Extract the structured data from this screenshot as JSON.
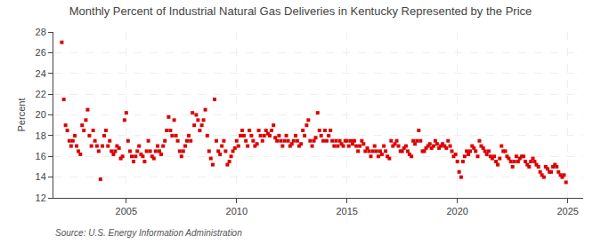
{
  "chart_data": {
    "type": "scatter",
    "title": "Monthly Percent of Industrial Natural Gas Deliveries in Kentucky Represented by the Price",
    "ylabel": "Percent",
    "annotations": [
      "Source: U.S. Energy Information Administration"
    ],
    "color": "#dd0000",
    "marker": "square",
    "grid": true,
    "xlim": [
      2001.7,
      2025.7
    ],
    "xticks": [
      2005,
      2010,
      2015,
      2020,
      2025
    ],
    "ylim": [
      12,
      28
    ],
    "yticks": [
      12,
      14,
      16,
      18,
      20,
      22,
      24,
      26,
      28
    ],
    "x": [
      2002.08,
      2002.17,
      2002.25,
      2002.33,
      2002.42,
      2002.5,
      2002.58,
      2002.67,
      2002.75,
      2002.83,
      2002.92,
      2003.0,
      2003.08,
      2003.17,
      2003.25,
      2003.33,
      2003.42,
      2003.5,
      2003.58,
      2003.67,
      2003.75,
      2003.83,
      2003.92,
      2004.0,
      2004.08,
      2004.17,
      2004.25,
      2004.33,
      2004.42,
      2004.5,
      2004.58,
      2004.67,
      2004.75,
      2004.83,
      2004.92,
      2005.0,
      2005.08,
      2005.17,
      2005.25,
      2005.33,
      2005.42,
      2005.5,
      2005.58,
      2005.67,
      2005.75,
      2005.83,
      2005.92,
      2006.0,
      2006.08,
      2006.17,
      2006.25,
      2006.33,
      2006.42,
      2006.5,
      2006.58,
      2006.67,
      2006.75,
      2006.83,
      2006.92,
      2007.0,
      2007.08,
      2007.17,
      2007.25,
      2007.33,
      2007.42,
      2007.5,
      2007.58,
      2007.67,
      2007.75,
      2007.83,
      2007.92,
      2008.0,
      2008.08,
      2008.17,
      2008.25,
      2008.33,
      2008.42,
      2008.5,
      2008.58,
      2008.67,
      2008.75,
      2008.83,
      2008.92,
      2009.0,
      2009.08,
      2009.17,
      2009.25,
      2009.33,
      2009.42,
      2009.5,
      2009.58,
      2009.67,
      2009.75,
      2009.83,
      2009.92,
      2010.0,
      2010.08,
      2010.17,
      2010.25,
      2010.33,
      2010.42,
      2010.5,
      2010.58,
      2010.67,
      2010.75,
      2010.83,
      2010.92,
      2011.0,
      2011.08,
      2011.17,
      2011.25,
      2011.33,
      2011.42,
      2011.5,
      2011.58,
      2011.67,
      2011.75,
      2011.83,
      2011.92,
      2012.0,
      2012.08,
      2012.17,
      2012.25,
      2012.33,
      2012.42,
      2012.5,
      2012.58,
      2012.67,
      2012.75,
      2012.83,
      2012.92,
      2013.0,
      2013.08,
      2013.17,
      2013.25,
      2013.33,
      2013.42,
      2013.5,
      2013.58,
      2013.67,
      2013.75,
      2013.83,
      2013.92,
      2014.0,
      2014.08,
      2014.17,
      2014.25,
      2014.33,
      2014.42,
      2014.5,
      2014.58,
      2014.67,
      2014.75,
      2014.83,
      2014.92,
      2015.0,
      2015.08,
      2015.17,
      2015.25,
      2015.33,
      2015.42,
      2015.5,
      2015.58,
      2015.67,
      2015.75,
      2015.83,
      2015.92,
      2016.0,
      2016.08,
      2016.17,
      2016.25,
      2016.33,
      2016.42,
      2016.5,
      2016.58,
      2016.67,
      2016.75,
      2016.83,
      2016.92,
      2017.0,
      2017.08,
      2017.17,
      2017.25,
      2017.33,
      2017.42,
      2017.5,
      2017.58,
      2017.67,
      2017.75,
      2017.83,
      2017.92,
      2018.0,
      2018.08,
      2018.17,
      2018.25,
      2018.33,
      2018.42,
      2018.5,
      2018.58,
      2018.67,
      2018.75,
      2018.83,
      2018.92,
      2019.0,
      2019.08,
      2019.17,
      2019.25,
      2019.33,
      2019.42,
      2019.5,
      2019.58,
      2019.67,
      2019.75,
      2019.83,
      2019.92,
      2020.0,
      2020.08,
      2020.17,
      2020.25,
      2020.33,
      2020.42,
      2020.5,
      2020.58,
      2020.67,
      2020.75,
      2020.83,
      2020.92,
      2021.0,
      2021.08,
      2021.17,
      2021.25,
      2021.33,
      2021.42,
      2021.5,
      2021.58,
      2021.67,
      2021.75,
      2021.83,
      2021.92,
      2022.0,
      2022.08,
      2022.17,
      2022.25,
      2022.33,
      2022.42,
      2022.5,
      2022.58,
      2022.67,
      2022.75,
      2022.83,
      2022.92,
      2023.0,
      2023.08,
      2023.17,
      2023.25,
      2023.33,
      2023.42,
      2023.5,
      2023.58,
      2023.67,
      2023.75,
      2023.83,
      2023.92,
      2024.0,
      2024.08,
      2024.17,
      2024.25,
      2024.33,
      2024.42,
      2024.5,
      2024.58,
      2024.67,
      2024.75,
      2024.83,
      2024.92
    ],
    "values": [
      27.0,
      21.5,
      19.0,
      18.5,
      17.5,
      17.0,
      17.5,
      18.0,
      17.0,
      16.5,
      16.2,
      19.0,
      18.5,
      19.5,
      20.5,
      18.0,
      17.0,
      18.5,
      17.5,
      17.0,
      16.5,
      13.8,
      17.0,
      18.0,
      18.5,
      17.0,
      17.5,
      16.5,
      16.2,
      16.5,
      17.0,
      16.8,
      15.8,
      16.0,
      19.5,
      20.2,
      17.5,
      16.5,
      16.0,
      15.5,
      16.0,
      16.5,
      17.0,
      16.2,
      16.0,
      15.5,
      16.5,
      17.5,
      16.5,
      16.0,
      15.8,
      16.5,
      17.0,
      16.5,
      16.2,
      17.0,
      17.5,
      18.5,
      19.8,
      18.5,
      18.0,
      19.5,
      18.0,
      17.5,
      16.5,
      16.0,
      16.5,
      17.0,
      17.5,
      18.0,
      17.5,
      20.2,
      19.0,
      20.0,
      19.5,
      18.5,
      19.0,
      19.5,
      20.5,
      18.0,
      16.5,
      15.8,
      15.2,
      21.5,
      17.5,
      16.5,
      16.2,
      17.0,
      17.5,
      16.5,
      15.2,
      15.5,
      16.0,
      16.5,
      16.8,
      17.5,
      17.0,
      18.0,
      18.5,
      18.0,
      17.5,
      17.0,
      18.5,
      18.0,
      17.5,
      17.0,
      17.2,
      18.5,
      18.0,
      17.5,
      18.0,
      18.5,
      18.2,
      18.0,
      18.5,
      19.0,
      17.8,
      17.5,
      18.0,
      17.5,
      17.0,
      17.5,
      18.0,
      17.5,
      17.0,
      17.2,
      17.5,
      18.0,
      17.5,
      17.0,
      17.2,
      18.5,
      18.0,
      19.0,
      19.5,
      17.5,
      17.0,
      17.5,
      17.8,
      20.2,
      18.5,
      18.0,
      17.5,
      18.5,
      17.5,
      18.0,
      18.5,
      17.5,
      17.0,
      17.5,
      17.0,
      17.5,
      17.2,
      17.0,
      17.5,
      17.5,
      17.0,
      17.5,
      17.2,
      17.5,
      17.0,
      16.5,
      17.0,
      17.5,
      17.2,
      16.5,
      16.8,
      16.5,
      16.0,
      16.5,
      17.0,
      16.5,
      16.0,
      16.5,
      16.2,
      17.0,
      16.5,
      16.0,
      15.8,
      17.5,
      17.0,
      17.2,
      17.5,
      17.0,
      16.5,
      16.5,
      16.8,
      17.0,
      16.5,
      16.2,
      16.0,
      17.5,
      17.2,
      17.5,
      18.5,
      17.5,
      16.5,
      16.5,
      16.8,
      17.0,
      17.2,
      16.8,
      17.0,
      17.5,
      17.2,
      16.8,
      17.0,
      17.2,
      17.0,
      16.8,
      17.5,
      17.0,
      16.5,
      16.0,
      16.2,
      15.5,
      14.5,
      14.0,
      15.5,
      16.0,
      16.5,
      16.2,
      16.5,
      17.0,
      16.8,
      16.5,
      16.0,
      17.5,
      17.0,
      16.8,
      16.5,
      16.2,
      16.5,
      16.0,
      15.8,
      16.0,
      15.5,
      15.2,
      15.8,
      17.0,
      16.5,
      16.5,
      16.0,
      15.8,
      15.5,
      15.0,
      15.5,
      16.0,
      15.5,
      15.8,
      16.0,
      16.0,
      15.5,
      15.2,
      15.0,
      15.5,
      15.8,
      15.5,
      15.2,
      15.0,
      14.5,
      14.2,
      14.0,
      15.0,
      14.8,
      14.5,
      14.5,
      15.0,
      15.2,
      15.0,
      14.5,
      14.2,
      14.0,
      14.2,
      13.5
    ]
  }
}
